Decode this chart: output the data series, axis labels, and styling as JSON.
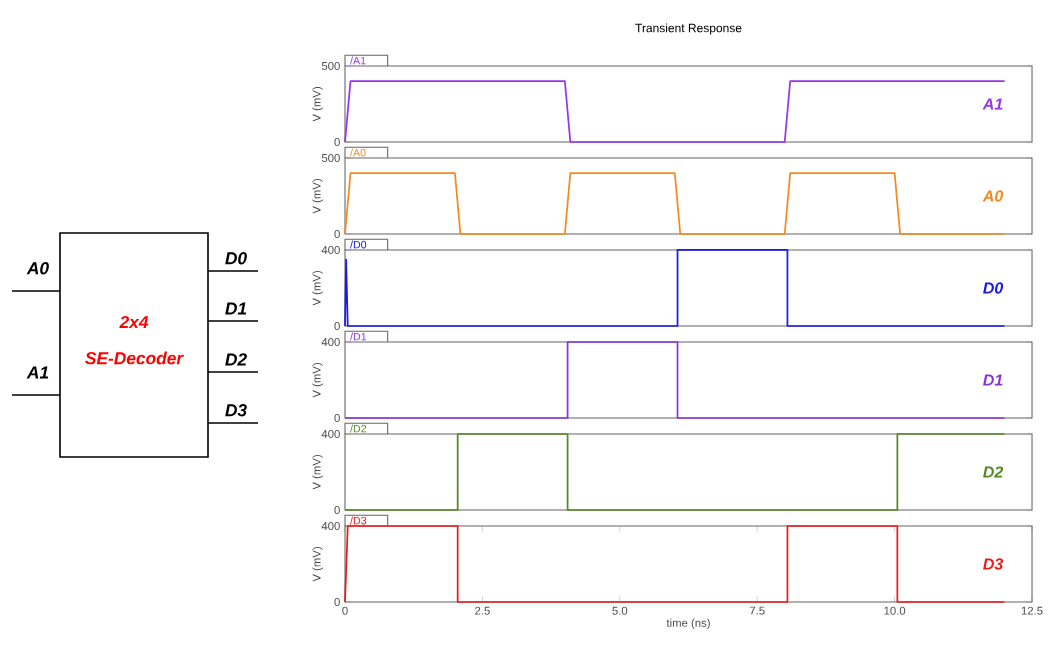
{
  "chart_data": [
    {
      "type": "other",
      "annotations": [
        "A0",
        "A1",
        "D0",
        "D1",
        "D2",
        "D3",
        "2x4",
        "SE-Decoder"
      ]
    },
    {
      "type": "line",
      "title": "Transient Response",
      "ylabel": "V (mV)",
      "xlim": [
        0,
        12.5
      ],
      "ylim": [
        0,
        500
      ],
      "yticks": [
        0,
        500
      ],
      "tick_labels": "y",
      "legend": "top left",
      "annotations": [
        "A1"
      ],
      "series": [
        {
          "name": "/A1",
          "color": "#9933ee",
          "x": [
            0,
            0.1,
            4.0,
            4.1,
            8.0,
            8.1,
            12.0
          ],
          "values": [
            0,
            400,
            400,
            0,
            0,
            400,
            400
          ]
        }
      ]
    },
    {
      "type": "line",
      "ylabel": "V (mV)",
      "xlim": [
        0,
        12.5
      ],
      "ylim": [
        0,
        500
      ],
      "yticks": [
        0,
        500
      ],
      "tick_labels": "y",
      "legend": "top left",
      "annotations": [
        "A0"
      ],
      "series": [
        {
          "name": "/A0",
          "color": "#f58a1f",
          "x": [
            0,
            0.1,
            2.0,
            2.1,
            4.0,
            4.1,
            6.0,
            6.1,
            8.0,
            8.1,
            10.0,
            10.1,
            12.0
          ],
          "values": [
            0,
            400,
            400,
            0,
            0,
            400,
            400,
            0,
            0,
            400,
            400,
            0,
            0
          ]
        }
      ]
    },
    {
      "type": "line",
      "ylabel": "V (mV)",
      "xlim": [
        0,
        12.5
      ],
      "ylim": [
        0,
        400
      ],
      "yticks": [
        0,
        400
      ],
      "tick_labels": "y",
      "legend": "top left",
      "annotations": [
        "D0"
      ],
      "series": [
        {
          "name": "/D0",
          "color": "#1a1aee",
          "x": [
            0,
            0.02,
            0.05,
            6.05,
            6.05,
            8.05,
            8.05,
            12.0
          ],
          "values": [
            0,
            350,
            0,
            0,
            400,
            400,
            0,
            0
          ]
        }
      ]
    },
    {
      "type": "line",
      "ylabel": "V (mV)",
      "xlim": [
        0,
        12.5
      ],
      "ylim": [
        0,
        400
      ],
      "yticks": [
        0,
        400
      ],
      "tick_labels": "y",
      "legend": "top left",
      "annotations": [
        "D1"
      ],
      "series": [
        {
          "name": "/D1",
          "color": "#8833dd",
          "x": [
            0,
            4.05,
            4.05,
            6.05,
            6.05,
            12.0
          ],
          "values": [
            0,
            0,
            400,
            400,
            0,
            0
          ]
        }
      ]
    },
    {
      "type": "line",
      "ylabel": "V (mV)",
      "xlim": [
        0,
        12.5
      ],
      "ylim": [
        0,
        400
      ],
      "yticks": [
        0,
        400
      ],
      "tick_labels": "y",
      "legend": "top left",
      "annotations": [
        "D2"
      ],
      "series": [
        {
          "name": "/D2",
          "color": "#558822",
          "x": [
            0,
            2.05,
            2.05,
            4.05,
            4.05,
            10.05,
            10.05,
            12.0
          ],
          "values": [
            0,
            0,
            400,
            400,
            0,
            0,
            400,
            400
          ]
        }
      ]
    },
    {
      "type": "line",
      "ylabel": "V (mV)",
      "xlabel": "time (ns)",
      "xlim": [
        0,
        12.5
      ],
      "ylim": [
        0,
        400
      ],
      "yticks": [
        0,
        400
      ],
      "xticks": [
        0,
        2.5,
        {
          "value": 5,
          "label": "5.0"
        },
        7.5,
        {
          "value": 10,
          "label": "10.0"
        },
        12.5
      ],
      "legend": "top left",
      "annotations": [
        "D3"
      ],
      "series": [
        {
          "name": "/D3",
          "color": "#ee1a1a",
          "x": [
            0,
            0.05,
            2.05,
            2.05,
            8.05,
            8.05,
            10.05,
            10.05,
            12.0
          ],
          "values": [
            0,
            400,
            400,
            0,
            0,
            400,
            400,
            0,
            0
          ]
        }
      ]
    }
  ]
}
